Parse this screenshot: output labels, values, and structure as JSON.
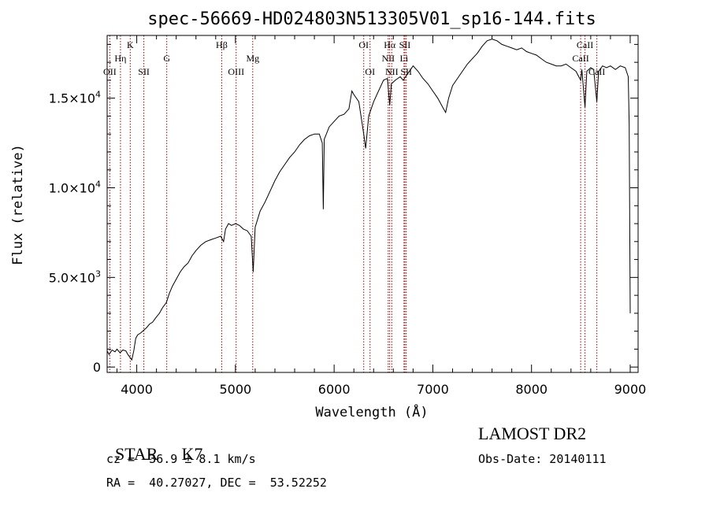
{
  "chart_data": {
    "type": "line",
    "title": "spec-56669-HD024803N513305V01_sp16-144.fits",
    "xlabel": "Wavelength (Å)",
    "ylabel": "Flux (relative)",
    "xlim": [
      3700,
      9080
    ],
    "ylim": [
      -300,
      18500
    ],
    "grid": false,
    "x_ticks": [
      {
        "value": 4000,
        "label": "4000"
      },
      {
        "value": 5000,
        "label": "5000"
      },
      {
        "value": 6000,
        "label": "6000"
      },
      {
        "value": 7000,
        "label": "7000"
      },
      {
        "value": 8000,
        "label": "8000"
      },
      {
        "value": 9000,
        "label": "9000"
      }
    ],
    "y_ticks": [
      {
        "value": 0,
        "mantissa": "0",
        "exponent": ""
      },
      {
        "value": 5000,
        "mantissa": "5.0×10",
        "exponent": "3"
      },
      {
        "value": 10000,
        "mantissa": "1.0×10",
        "exponent": "4"
      },
      {
        "value": 15000,
        "mantissa": "1.5×10",
        "exponent": "4"
      }
    ],
    "series": [
      {
        "color": "#000000",
        "points": [
          [
            3700,
            900
          ],
          [
            3720,
            700
          ],
          [
            3750,
            950
          ],
          [
            3780,
            850
          ],
          [
            3800,
            1000
          ],
          [
            3830,
            800
          ],
          [
            3860,
            950
          ],
          [
            3890,
            900
          ],
          [
            3910,
            700
          ],
          [
            3930,
            550
          ],
          [
            3950,
            400
          ],
          [
            3970,
            900
          ],
          [
            3990,
            1600
          ],
          [
            4010,
            1800
          ],
          [
            4040,
            1900
          ],
          [
            4080,
            2100
          ],
          [
            4100,
            2200
          ],
          [
            4130,
            2400
          ],
          [
            4160,
            2500
          ],
          [
            4200,
            2800
          ],
          [
            4230,
            3000
          ],
          [
            4260,
            3300
          ],
          [
            4300,
            3600
          ],
          [
            4330,
            4100
          ],
          [
            4360,
            4500
          ],
          [
            4400,
            4900
          ],
          [
            4440,
            5300
          ],
          [
            4480,
            5600
          ],
          [
            4520,
            5800
          ],
          [
            4560,
            6200
          ],
          [
            4600,
            6500
          ],
          [
            4650,
            6800
          ],
          [
            4700,
            7000
          ],
          [
            4750,
            7100
          ],
          [
            4800,
            7200
          ],
          [
            4850,
            7300
          ],
          [
            4880,
            7000
          ],
          [
            4900,
            7700
          ],
          [
            4930,
            8000
          ],
          [
            4960,
            7900
          ],
          [
            5000,
            8000
          ],
          [
            5040,
            7900
          ],
          [
            5080,
            7700
          ],
          [
            5120,
            7600
          ],
          [
            5160,
            7300
          ],
          [
            5180,
            5300
          ],
          [
            5200,
            7800
          ],
          [
            5250,
            8700
          ],
          [
            5300,
            9200
          ],
          [
            5350,
            9800
          ],
          [
            5400,
            10400
          ],
          [
            5450,
            10900
          ],
          [
            5500,
            11300
          ],
          [
            5550,
            11700
          ],
          [
            5600,
            12000
          ],
          [
            5650,
            12400
          ],
          [
            5700,
            12700
          ],
          [
            5750,
            12900
          ],
          [
            5800,
            13000
          ],
          [
            5850,
            13000
          ],
          [
            5880,
            12500
          ],
          [
            5890,
            8800
          ],
          [
            5900,
            12700
          ],
          [
            5950,
            13400
          ],
          [
            6000,
            13700
          ],
          [
            6050,
            14000
          ],
          [
            6100,
            14100
          ],
          [
            6150,
            14400
          ],
          [
            6180,
            15400
          ],
          [
            6200,
            15200
          ],
          [
            6250,
            14800
          ],
          [
            6300,
            13000
          ],
          [
            6320,
            12200
          ],
          [
            6350,
            14000
          ],
          [
            6400,
            14800
          ],
          [
            6450,
            15400
          ],
          [
            6500,
            16000
          ],
          [
            6540,
            16100
          ],
          [
            6563,
            14600
          ],
          [
            6580,
            15800
          ],
          [
            6620,
            16000
          ],
          [
            6670,
            16200
          ],
          [
            6700,
            16000
          ],
          [
            6750,
            16400
          ],
          [
            6800,
            16800
          ],
          [
            6850,
            16500
          ],
          [
            6900,
            16100
          ],
          [
            6950,
            15800
          ],
          [
            7000,
            15400
          ],
          [
            7050,
            15000
          ],
          [
            7100,
            14500
          ],
          [
            7130,
            14200
          ],
          [
            7160,
            15000
          ],
          [
            7200,
            15700
          ],
          [
            7250,
            16100
          ],
          [
            7300,
            16500
          ],
          [
            7350,
            16900
          ],
          [
            7400,
            17200
          ],
          [
            7450,
            17500
          ],
          [
            7500,
            17900
          ],
          [
            7550,
            18200
          ],
          [
            7600,
            18300
          ],
          [
            7650,
            18200
          ],
          [
            7700,
            18000
          ],
          [
            7750,
            17900
          ],
          [
            7800,
            17800
          ],
          [
            7850,
            17700
          ],
          [
            7900,
            17800
          ],
          [
            7950,
            17600
          ],
          [
            8000,
            17500
          ],
          [
            8050,
            17400
          ],
          [
            8100,
            17200
          ],
          [
            8150,
            17000
          ],
          [
            8200,
            16900
          ],
          [
            8250,
            16800
          ],
          [
            8300,
            16800
          ],
          [
            8350,
            16900
          ],
          [
            8400,
            16700
          ],
          [
            8450,
            16500
          ],
          [
            8498,
            16000
          ],
          [
            8510,
            16600
          ],
          [
            8542,
            14500
          ],
          [
            8560,
            16500
          ],
          [
            8600,
            16700
          ],
          [
            8630,
            16600
          ],
          [
            8662,
            14800
          ],
          [
            8680,
            16500
          ],
          [
            8720,
            16800
          ],
          [
            8760,
            16700
          ],
          [
            8800,
            16800
          ],
          [
            8850,
            16600
          ],
          [
            8900,
            16800
          ],
          [
            8950,
            16700
          ],
          [
            8980,
            16200
          ],
          [
            8990,
            13500
          ],
          [
            9000,
            3000
          ]
        ]
      }
    ],
    "lines": [
      {
        "x": 3727,
        "label": "OII",
        "row": 3
      },
      {
        "x": 3835,
        "label": "Hη",
        "row": 2
      },
      {
        "x": 3934,
        "label": "K",
        "row": 1
      },
      {
        "x": 4072,
        "label": "SII",
        "row": 3
      },
      {
        "x": 4304,
        "label": "G",
        "row": 2
      },
      {
        "x": 4861,
        "label": "Hβ",
        "row": 1
      },
      {
        "x": 5007,
        "label": "OIII",
        "row": 3
      },
      {
        "x": 5175,
        "label": "Mg",
        "row": 2
      },
      {
        "x": 6300,
        "label": "OI",
        "row": 1
      },
      {
        "x": 6364,
        "label": "OI",
        "row": 3
      },
      {
        "x": 6548,
        "label": "NII",
        "row": 2
      },
      {
        "x": 6563,
        "label": "Hα",
        "row": 1
      },
      {
        "x": 6584,
        "label": "NII",
        "row": 3
      },
      {
        "x": 6708,
        "label": "Li",
        "row": 2
      },
      {
        "x": 6717,
        "label": "SII",
        "row": 1
      },
      {
        "x": 6731,
        "label": "SII",
        "row": 3
      },
      {
        "x": 8498,
        "label": "CaII",
        "row": 2
      },
      {
        "x": 8542,
        "label": "CaII",
        "row": 1
      },
      {
        "x": 8662,
        "label": "CaII",
        "row": 3
      }
    ]
  },
  "footer": {
    "class_label": "STAR",
    "subclass": "K7",
    "cz": "cz = −36.9 ± 8.1 km/s",
    "radec": "RA =  40.27027, DEC =  53.52252",
    "survey": "LAMOST DR2",
    "obsdate": "Obs-Date: 20140111"
  }
}
